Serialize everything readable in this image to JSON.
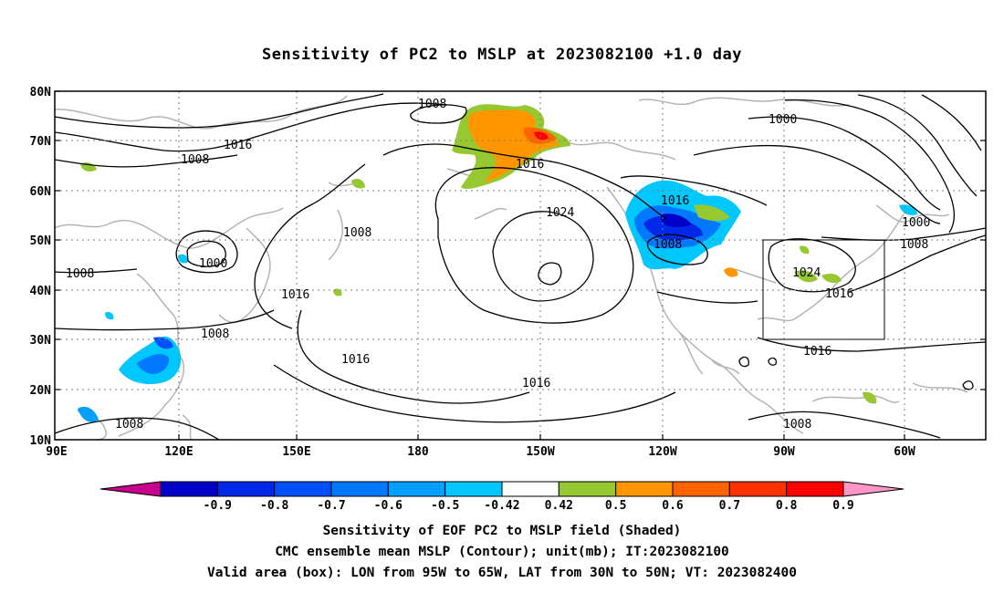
{
  "title": "Sensitivity of PC2 to MSLP at 2023082100 +1.0 day",
  "map": {
    "lat_labels": [
      "80N",
      "70N",
      "60N",
      "50N",
      "40N",
      "30N",
      "20N",
      "10N"
    ],
    "lon_labels": [
      "90E",
      "120E",
      "150E",
      "180",
      "150W",
      "120W",
      "90W",
      "60W"
    ],
    "contour_labels": [
      {
        "text": "1008"
      },
      {
        "text": "1016"
      },
      {
        "text": "1008"
      },
      {
        "text": "1000"
      },
      {
        "text": "1008"
      },
      {
        "text": "1016"
      },
      {
        "text": "1008"
      },
      {
        "text": "1008"
      },
      {
        "text": "1008"
      },
      {
        "text": "1016"
      },
      {
        "text": "1024"
      },
      {
        "text": "1016"
      },
      {
        "text": "1008"
      },
      {
        "text": "1016"
      },
      {
        "text": "1016"
      },
      {
        "text": "1000"
      },
      {
        "text": "1000"
      },
      {
        "text": "1008"
      },
      {
        "text": "1024"
      },
      {
        "text": "1016"
      },
      {
        "text": "1016"
      },
      {
        "text": "1008"
      }
    ],
    "valid_box": {
      "lon_range": [
        "95W",
        "65W"
      ],
      "lat_range": [
        "30N",
        "50N"
      ]
    }
  },
  "colorbar": {
    "labels": [
      "-0.9",
      "-0.8",
      "-0.7",
      "-0.6",
      "-0.5",
      "-0.42",
      "0.42",
      "0.5",
      "0.6",
      "0.7",
      "0.8",
      "0.9"
    ],
    "colors": [
      "#c8008c",
      "#0000c8",
      "#0028e6",
      "#0050ff",
      "#0078ff",
      "#00a0ff",
      "#00c8ff",
      "#ffffff",
      "#96c832",
      "#ff9600",
      "#ff6400",
      "#ff3200",
      "#ff0000",
      "#ff96c8"
    ]
  },
  "captions": {
    "line1": "Sensitivity of EOF PC2 to MSLP field (Shaded)",
    "line2": "CMC ensemble mean MSLP (Contour); unit(mb); IT:2023082100",
    "line3": "Valid area (box): LON from 95W to 65W, LAT from 30N to 50N; VT: 2023082400"
  }
}
